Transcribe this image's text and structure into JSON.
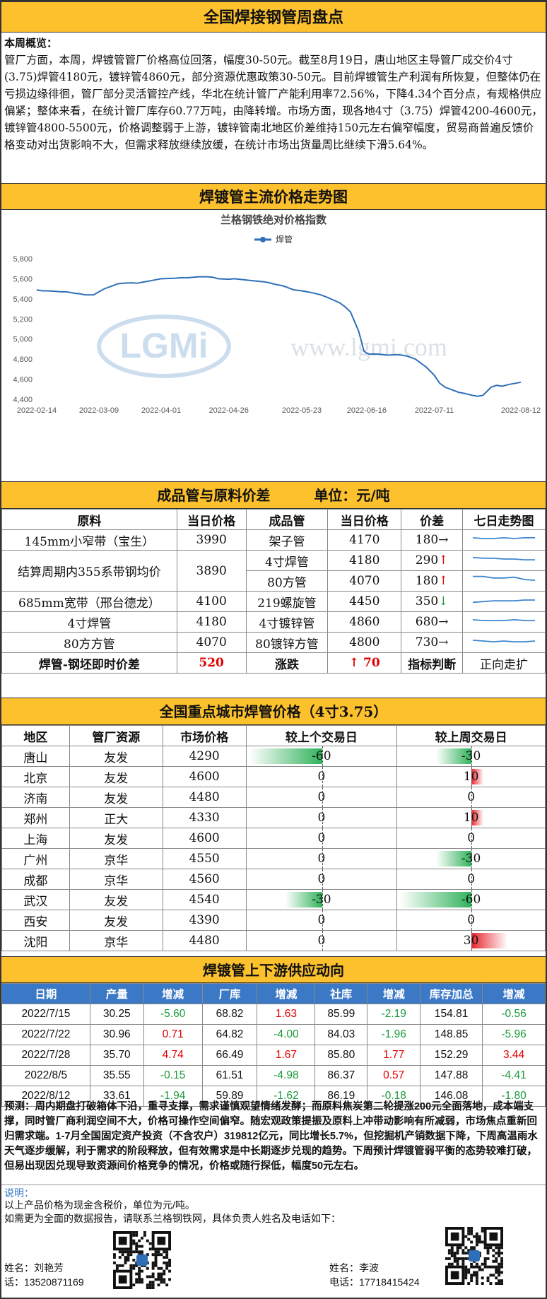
{
  "title": "全国焊接钢管周盘点",
  "overview": {
    "label": "本周概览：",
    "text": "管厂方面，本周，焊镀管管厂价格高位回落，幅度30-50元。截至8月19日，唐山地区主导管厂成交价4寸(3.75)焊管4180元，镀锌管4860元，部分资源优惠政策30-50元。目前焊镀管生产利润有所恢复，但整体仍在亏损边缘徘徊，管厂部分灵活管控产线，华北在统计管厂产能利用率72.56%，下降4.34个百分点，有规格供应偏紧；整体来看，在统计管厂库存60.77万吨，由降转增。市场方面，现各地4寸（3.75）焊管4200-4600元，镀锌管4800-5500元，价格调整弱于上游，镀锌管南北地区价差维持150元左右偏窄幅度，贸易商普遍反馈价格变动对出货影响不大，但需求释放继续放缓，在统计市场出货量周比继续下滑5.64%。"
  },
  "price_trend": {
    "section_title": "焊镀管主流价格走势图",
    "watermark": "www.lgmi.com",
    "logo_text": "LGMi"
  },
  "chart_data": {
    "type": "line",
    "title": "兰格钢铁绝对价格指数",
    "series": [
      {
        "name": "焊管",
        "color": "#2f6fb8",
        "x": [
          "2022-02-14",
          "2022-02-16",
          "2022-02-18",
          "2022-02-21",
          "2022-02-23",
          "2022-02-25",
          "2022-02-28",
          "2022-03-02",
          "2022-03-04",
          "2022-03-07",
          "2022-03-09",
          "2022-03-11",
          "2022-03-14",
          "2022-03-16",
          "2022-03-18",
          "2022-03-21",
          "2022-03-23",
          "2022-03-25",
          "2022-03-28",
          "2022-03-30",
          "2022-04-01",
          "2022-04-06",
          "2022-04-08",
          "2022-04-11",
          "2022-04-13",
          "2022-04-15",
          "2022-04-18",
          "2022-04-20",
          "2022-04-22",
          "2022-04-26",
          "2022-04-28",
          "2022-05-05",
          "2022-05-09",
          "2022-05-11",
          "2022-05-13",
          "2022-05-16",
          "2022-05-18",
          "2022-05-20",
          "2022-05-23",
          "2022-05-25",
          "2022-05-27",
          "2022-05-30",
          "2022-06-01",
          "2022-06-06",
          "2022-06-08",
          "2022-06-10",
          "2022-06-13",
          "2022-06-15",
          "2022-06-16",
          "2022-06-17",
          "2022-06-20",
          "2022-06-22",
          "2022-06-24",
          "2022-06-27",
          "2022-06-29",
          "2022-07-01",
          "2022-07-04",
          "2022-07-06",
          "2022-07-08",
          "2022-07-11",
          "2022-07-13",
          "2022-07-15",
          "2022-07-18",
          "2022-07-20",
          "2022-07-22",
          "2022-07-25",
          "2022-07-27",
          "2022-07-29",
          "2022-08-01",
          "2022-08-03",
          "2022-08-05",
          "2022-08-08",
          "2022-08-10",
          "2022-08-12"
        ],
        "values": [
          5490,
          5480,
          5480,
          5475,
          5470,
          5470,
          5455,
          5450,
          5440,
          5440,
          5470,
          5500,
          5530,
          5550,
          5555,
          5560,
          5555,
          5565,
          5580,
          5590,
          5600,
          5605,
          5610,
          5610,
          5615,
          5620,
          5620,
          5615,
          5600,
          5595,
          5600,
          5580,
          5570,
          5560,
          5545,
          5530,
          5510,
          5490,
          5480,
          5470,
          5460,
          5440,
          5420,
          5360,
          5320,
          5270,
          5080,
          4880,
          4860,
          4850,
          4850,
          4845,
          4840,
          4845,
          4840,
          4830,
          4800,
          4760,
          4720,
          4640,
          4560,
          4520,
          4490,
          4470,
          4460,
          4440,
          4430,
          4440,
          4520,
          4540,
          4530,
          4550,
          4560,
          4570
        ]
      }
    ],
    "x_ticks": [
      "2022-02-14",
      "2022-03-09",
      "2022-04-01",
      "2022-04-26",
      "2022-05-23",
      "2022-06-16",
      "2022-07-11",
      "2022-08-12"
    ],
    "y_ticks": [
      4400,
      4600,
      4800,
      5000,
      5200,
      5400,
      5600,
      5800
    ],
    "ylim": [
      4400,
      5800
    ],
    "grid": false,
    "legend": "top-center"
  },
  "spread": {
    "section_title_main": "成品管与原料价差",
    "section_title_unit": "单位：元/吨",
    "headers": [
      "原料",
      "当日价格",
      "成品管",
      "当日价格",
      "价差",
      "七日走势图"
    ],
    "rows": [
      {
        "raw": "145mm小窄带（宝生）",
        "raw_price": "3990",
        "products": [
          {
            "name": "架子管",
            "price": "4170",
            "diff": "180",
            "dir": "→",
            "trend": [
              0.55,
              0.5,
              0.5,
              0.55,
              0.5,
              0.55,
              0.55
            ]
          }
        ]
      },
      {
        "raw": "结算周期内355系带钢均价",
        "raw_price": "3890",
        "products": [
          {
            "name": "4寸焊管",
            "price": "4180",
            "diff": "290",
            "dir": "↑",
            "trend": [
              0.6,
              0.55,
              0.55,
              0.5,
              0.5,
              0.45,
              0.45
            ]
          },
          {
            "name": "80方管",
            "price": "4070",
            "diff": "180",
            "dir": "↑",
            "trend": [
              0.7,
              0.7,
              0.6,
              0.6,
              0.65,
              0.5,
              0.45
            ]
          }
        ]
      },
      {
        "raw": "685mm宽带（邢台德龙）",
        "raw_price": "4100",
        "products": [
          {
            "name": "219螺旋管",
            "price": "4450",
            "diff": "350",
            "dir": "↓",
            "trend": [
              0.35,
              0.4,
              0.45,
              0.45,
              0.45,
              0.5,
              0.5
            ]
          }
        ]
      },
      {
        "raw": "4寸焊管",
        "raw_price": "4180",
        "products": [
          {
            "name": "4寸镀锌管",
            "price": "4860",
            "diff": "680",
            "dir": "→",
            "trend": [
              0.55,
              0.5,
              0.5,
              0.5,
              0.55,
              0.5,
              0.5
            ]
          }
        ]
      },
      {
        "raw": "80方方管",
        "raw_price": "4070",
        "products": [
          {
            "name": "80镀锌方管",
            "price": "4800",
            "diff": "730",
            "dir": "→",
            "trend": [
              0.55,
              0.5,
              0.45,
              0.5,
              0.45,
              0.45,
              0.5
            ]
          }
        ]
      }
    ],
    "footer": {
      "label": "焊管-钢坯即时价差",
      "value": "520",
      "change_label": "涨跌",
      "change_arrow": "↑",
      "change_value": "70",
      "judge_label": "指标判断",
      "judge_value": "正向走扩"
    }
  },
  "city": {
    "section_title": "全国重点城市焊管价格（4寸3.75）",
    "headers": [
      "地区",
      "管厂资源",
      "市场价格",
      "较上个交易日",
      "较上周交易日"
    ],
    "rows": [
      {
        "region": "唐山",
        "mill": "友发",
        "price": "4290",
        "d1": "-60",
        "d1v": -60,
        "d2": "-30",
        "d2v": -30
      },
      {
        "region": "北京",
        "mill": "友发",
        "price": "4600",
        "d1": "0",
        "d1v": 0,
        "d2": "10",
        "d2v": 10
      },
      {
        "region": "济南",
        "mill": "友发",
        "price": "4480",
        "d1": "0",
        "d1v": 0,
        "d2": "0",
        "d2v": 0
      },
      {
        "region": "郑州",
        "mill": "正大",
        "price": "4330",
        "d1": "0",
        "d1v": 0,
        "d2": "10",
        "d2v": 10
      },
      {
        "region": "上海",
        "mill": "友发",
        "price": "4600",
        "d1": "0",
        "d1v": 0,
        "d2": "0",
        "d2v": 0
      },
      {
        "region": "广州",
        "mill": "京华",
        "price": "4550",
        "d1": "0",
        "d1v": 0,
        "d2": "-30",
        "d2v": -30
      },
      {
        "region": "成都",
        "mill": "京华",
        "price": "4560",
        "d1": "0",
        "d1v": 0,
        "d2": "0",
        "d2v": 0
      },
      {
        "region": "武汉",
        "mill": "友发",
        "price": "4540",
        "d1": "-30",
        "d1v": -30,
        "d2": "-60",
        "d2v": -60
      },
      {
        "region": "西安",
        "mill": "友发",
        "price": "4390",
        "d1": "0",
        "d1v": 0,
        "d2": "0",
        "d2v": 0
      },
      {
        "region": "沈阳",
        "mill": "京华",
        "price": "4480",
        "d1": "0",
        "d1v": 0,
        "d2": "30",
        "d2v": 30
      }
    ]
  },
  "supply": {
    "section_title": "焊镀管上下游供应动向",
    "headers": [
      "日期",
      "产量",
      "增减",
      "厂库",
      "增减",
      "社库",
      "增减",
      "库存加总",
      "增减"
    ],
    "rows": [
      [
        "2022/7/15",
        "30.25",
        "-5.60",
        "68.82",
        "1.63",
        "85.99",
        "-2.19",
        "154.81",
        "-0.56"
      ],
      [
        "2022/7/22",
        "30.96",
        "0.71",
        "64.82",
        "-4.00",
        "84.03",
        "-1.96",
        "148.85",
        "-5.96"
      ],
      [
        "2022/7/28",
        "35.70",
        "4.74",
        "66.49",
        "1.67",
        "85.80",
        "1.77",
        "152.29",
        "3.44"
      ],
      [
        "2022/8/5",
        "35.55",
        "-0.15",
        "61.51",
        "-4.98",
        "86.37",
        "0.57",
        "147.88",
        "-4.41"
      ],
      [
        "2022/8/12",
        "33.61",
        "-1.94",
        "59.89",
        "-1.62",
        "86.19",
        "-0.18",
        "146.08",
        "-1.80"
      ]
    ]
  },
  "forecast": {
    "label": "预测：",
    "text": "周内期盘打破箱体下沿，重寻支撑，需求谨慎观望情绪发酵；而原料焦炭第二轮提涨200元全面落地，成本端支撑，同时管厂商利润空间不大，价格可操作空间偏窄。随宏观政策提振及原料上冲带动影响有所减弱，市场焦点重新回归需求端。1-7月全国固定资产投资（不含农户）319812亿元，同比增长5.7%，但挖掘机产销数据下降，下周高温雨水天气逐步缓解，利于需求的阶段释放，但有效需求是中长期逐步兑现的趋势。下周预计焊镀管弱平衡的态势较难打破，但易出现因兑现导致资源间价格竞争的情况，价格或随行探低，幅度50元左右。"
  },
  "notes": {
    "label": "说明：",
    "line1": "以上产品价格为现金含税价，单位为元/吨。",
    "line2": "如需更为全面的数据报告，请联系兰格钢铁网，具体负责人姓名及电话如下："
  },
  "contacts": [
    {
      "name_line": "姓名：刘艳芳",
      "phone_line": "话：13520871169"
    },
    {
      "name_line": "姓名：李波",
      "phone_line": "电话：17718415424"
    }
  ]
}
